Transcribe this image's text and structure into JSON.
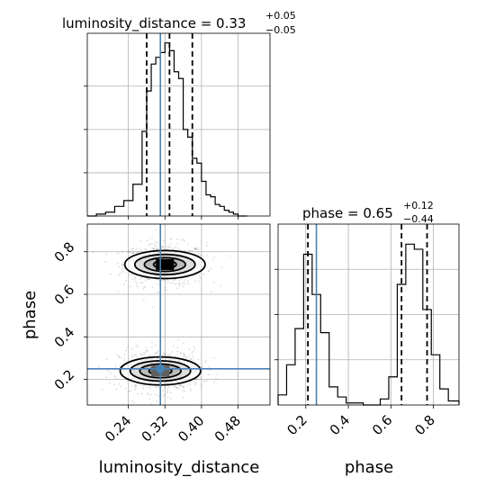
{
  "chart_data": {
    "type": "corner",
    "parameters": [
      "luminosity_distance",
      "phase"
    ],
    "truths": {
      "luminosity_distance": 0.31,
      "phase": 0.25
    },
    "panels": [
      {
        "name": "luminosity_distance",
        "type": "histogram",
        "title_text": "luminosity_distance = 0.33",
        "title_plus": "+0.05",
        "title_minus": "−0.05",
        "xlim": [
          0.15,
          0.55
        ],
        "quantiles": [
          0.28,
          0.33,
          0.38
        ],
        "bin_edges": [
          0.15,
          0.17,
          0.19,
          0.21,
          0.23,
          0.25,
          0.27,
          0.28,
          0.29,
          0.3,
          0.31,
          0.32,
          0.33,
          0.34,
          0.35,
          0.36,
          0.37,
          0.38,
          0.39,
          0.4,
          0.41,
          0.42,
          0.43,
          0.44,
          0.45,
          0.46,
          0.47,
          0.48,
          0.5
        ],
        "counts": [
          0,
          2,
          4,
          10,
          16,
          33,
          88,
          130,
          158,
          165,
          170,
          180,
          172,
          150,
          143,
          90,
          82,
          60,
          55,
          36,
          22,
          20,
          12,
          10,
          6,
          4,
          2,
          0
        ]
      },
      {
        "name": "phase",
        "type": "histogram",
        "title_text": "phase = 0.65",
        "title_plus": "+0.12",
        "title_minus": "−0.44",
        "xlim": [
          0.07,
          0.92
        ],
        "quantiles": [
          0.21,
          0.65,
          0.77
        ],
        "bin_edges": [
          0.07,
          0.11,
          0.15,
          0.19,
          0.23,
          0.27,
          0.31,
          0.35,
          0.39,
          0.43,
          0.47,
          0.51,
          0.55,
          0.59,
          0.63,
          0.67,
          0.71,
          0.75,
          0.79,
          0.83,
          0.87,
          0.92
        ],
        "counts": [
          10,
          40,
          76,
          150,
          110,
          72,
          18,
          8,
          2,
          2,
          0,
          0,
          6,
          28,
          120,
          160,
          155,
          95,
          50,
          16,
          4
        ]
      },
      {
        "name": "luminosity_distance-vs-phase",
        "type": "2d-density",
        "xlim": [
          0.15,
          0.55
        ],
        "ylim": [
          0.08,
          0.93
        ],
        "modes": [
          {
            "x": 0.32,
            "y": 0.74
          },
          {
            "x": 0.31,
            "y": 0.24
          }
        ]
      }
    ],
    "axes": {
      "xlabel_1": "luminosity_distance",
      "xlabel_2": "phase",
      "ylabel_2": "phase",
      "xticks_1": [
        "0.24",
        "0.32",
        "0.40",
        "0.48"
      ],
      "yticks_2": [
        "0.2",
        "0.4",
        "0.6",
        "0.8"
      ],
      "xticks_2": [
        "0.2",
        "0.4",
        "0.6",
        "0.8"
      ]
    },
    "colors": {
      "truth": "#4682b4",
      "line": "#000000",
      "grid": "#b0b0b0"
    }
  }
}
